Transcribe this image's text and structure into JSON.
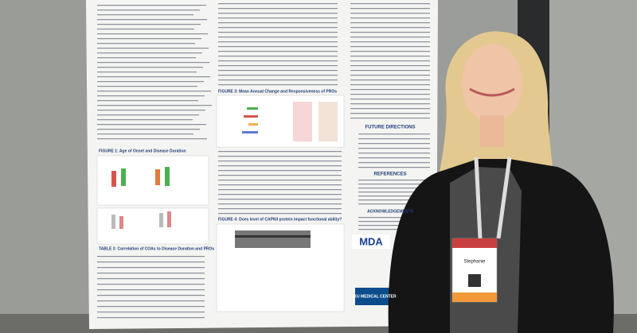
{
  "poster": {
    "sections": [
      "FIGURE 1: Age of Onset and Disease Duration",
      "TABLE 3: Correlation of COAs to Disease Duration and PROs",
      "FIGURE 3: Mean Annual Change and Responsiveness of PROs",
      "FIGURE 4: Does level of CAPN3 protein impact functional ability?",
      "FUTURE DIRECTIONS",
      "REFERENCES",
      "ACKNOWLEDGEMENTS"
    ],
    "logos": [
      "MDA",
      "KU MEDICAL CENTER"
    ]
  },
  "badge": {
    "name": "Stephanie"
  }
}
